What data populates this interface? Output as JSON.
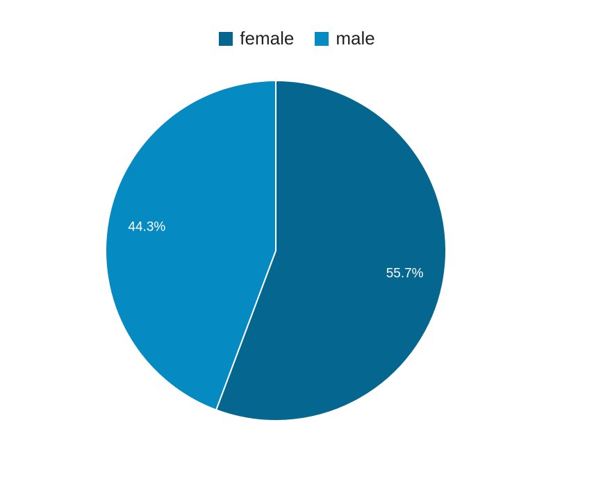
{
  "chart_data": {
    "type": "pie",
    "title": "",
    "legend_position": "top",
    "start_angle_deg": 0,
    "slices": [
      {
        "name": "female",
        "value": 55.7,
        "label": "55.7%",
        "color": "#05668f"
      },
      {
        "name": "male",
        "value": 44.3,
        "label": "44.3%",
        "color": "#058bc2"
      }
    ]
  },
  "legend": {
    "items": [
      {
        "label": "female",
        "color": "#05668f"
      },
      {
        "label": "male",
        "color": "#058bc2"
      }
    ]
  }
}
